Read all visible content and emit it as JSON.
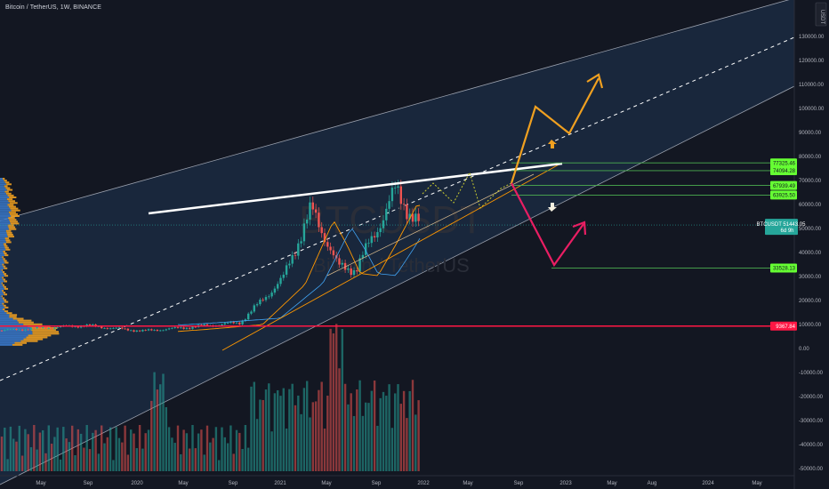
{
  "header": {
    "symbol_title": "Bitcoin / TetherUS, 1W, BINANCE"
  },
  "currency_badge": "USDT",
  "watermark": {
    "ticker": "BTCUSDT",
    "name": "Bitcoin / TetherUS"
  },
  "colors": {
    "background": "#131722",
    "up": "#26a69a",
    "down": "#ef5350",
    "channel_fill": "#1c2e46",
    "channel_line": "#9aa0ad",
    "resistance_line": "#ffffff",
    "level_line": "#4caf50",
    "level_label": "#66ff33",
    "red_level": "#ff1744",
    "bull_arrow": "#f0a020",
    "bear_arrow": "#e91e63",
    "ma": "#ff9800",
    "dotted_path": "#c6c830",
    "price_label": "#26a69a"
  },
  "chart_data": {
    "type": "candlestick",
    "title": "Bitcoin / TetherUS, 1W, BINANCE",
    "currency": "USDT",
    "x_tick_labels": [
      "May",
      "Sep",
      "2020",
      "May",
      "Sep",
      "2021",
      "May",
      "Sep",
      "2022",
      "May",
      "Sep",
      "2023",
      "May",
      "Aug",
      "2024",
      "May"
    ],
    "y_tick_labels": [
      "130000.00",
      "120000.00",
      "110000.00",
      "100000.00",
      "90000.00",
      "80000.00",
      "70000.00",
      "60000.00",
      "50000.00",
      "40000.00",
      "30000.00",
      "20000.00",
      "10000.00",
      "0.00",
      "-10000.00",
      "-20000.00",
      "-30000.00",
      "-40000.00",
      "-50000.00"
    ],
    "ylim": [
      -50000,
      140000
    ],
    "current_price": {
      "symbol": "BTCUSDT",
      "value": "51443.05",
      "countdown": "6d 9h"
    },
    "levels": [
      {
        "label": "77325.46",
        "value": 77325.46,
        "color": "#66ff33"
      },
      {
        "label": "74094.28",
        "value": 74094.28,
        "color": "#66ff33"
      },
      {
        "label": "67939.49",
        "value": 67939.49,
        "color": "#66ff33"
      },
      {
        "label": "63925.50",
        "value": 63925.5,
        "color": "#66ff33"
      },
      {
        "label": "33528.13",
        "value": 33528.13,
        "color": "#66ff33"
      },
      {
        "label": "9367.84",
        "value": 9367.84,
        "color": "#ff1744"
      }
    ],
    "price_path": [
      [
        "May",
        7500
      ],
      [
        "Sep",
        9000
      ],
      [
        "2020",
        7200
      ],
      [
        "May",
        8800
      ],
      [
        "Sep",
        10500
      ],
      [
        "2021",
        29000
      ],
      [
        "May",
        56000
      ],
      [
        "Sep",
        42000
      ],
      [
        "2022",
        46000
      ]
    ],
    "annotations": [
      {
        "type": "rising_channel",
        "label": ""
      },
      {
        "type": "resistance_line",
        "label": ""
      },
      {
        "type": "bullish_projection",
        "label": ""
      },
      {
        "type": "bearish_projection",
        "label": ""
      }
    ]
  }
}
